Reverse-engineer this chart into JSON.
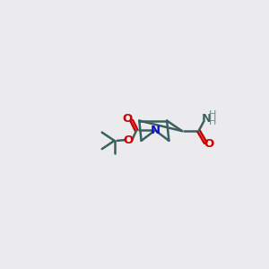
{
  "background_color": "#ebebed",
  "bond_color": "#3a6060",
  "bond_width": 1.8,
  "atom_colors": {
    "N": "#1010cc",
    "O": "#cc0000",
    "NH2_N": "#3a6060",
    "NH2_H": "#6a8a8a"
  },
  "figsize": [
    3.0,
    3.0
  ],
  "dpi": 100
}
